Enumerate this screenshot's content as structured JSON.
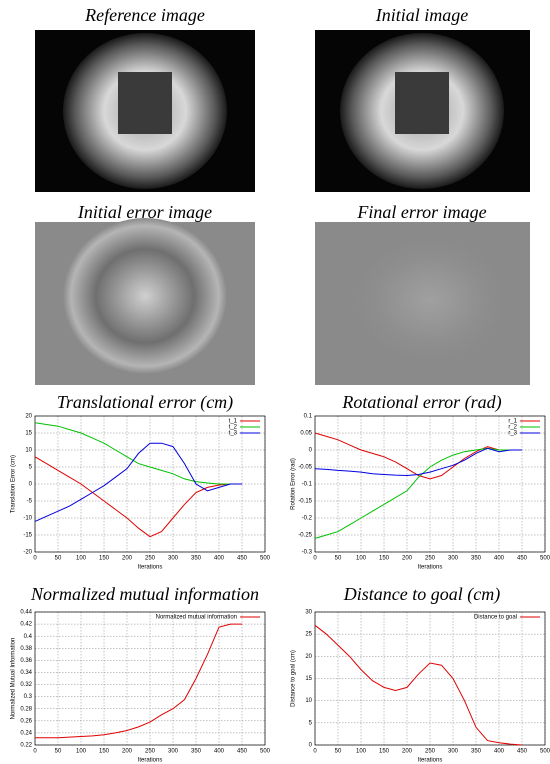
{
  "figures": [
    {
      "caption": "Reference image"
    },
    {
      "caption": "Initial image"
    },
    {
      "caption": "Initial error image"
    },
    {
      "caption": "Final error image"
    }
  ],
  "chart_data": [
    {
      "type": "line",
      "title": "Translational error (cm)",
      "xlabel": "Iterations",
      "ylabel": "Translation Error (cm)",
      "xlim": [
        0,
        500
      ],
      "xticks": [
        0,
        50,
        100,
        150,
        200,
        250,
        300,
        350,
        400,
        450,
        500
      ],
      "ylim": [
        -20,
        20
      ],
      "yticks": [
        -20,
        -15,
        -10,
        -5,
        0,
        5,
        10,
        15,
        20
      ],
      "grid": true,
      "legend": "top-right",
      "x": [
        0,
        25,
        50,
        75,
        100,
        125,
        150,
        175,
        200,
        225,
        250,
        275,
        300,
        325,
        350,
        375,
        400,
        425,
        450
      ],
      "series": [
        {
          "name": "t_1",
          "color": "#e00000",
          "values": [
            8,
            6,
            4,
            2,
            0,
            -2.5,
            -5,
            -7.5,
            -10,
            -13,
            -15.5,
            -14,
            -10,
            -6,
            -2.5,
            -1,
            -0.3,
            0,
            0
          ]
        },
        {
          "name": "t_2",
          "color": "#00c000",
          "values": [
            18,
            17.5,
            17,
            16,
            15,
            13.5,
            12,
            10,
            8,
            6,
            5,
            4,
            3,
            1.5,
            0.7,
            0.3,
            0,
            0,
            0
          ]
        },
        {
          "name": "t_3",
          "color": "#0000e0",
          "values": [
            -11,
            -9.5,
            -8,
            -6.5,
            -4.5,
            -2.5,
            -0.5,
            2,
            4.5,
            9,
            12,
            12,
            11,
            6,
            0,
            -2,
            -1,
            0,
            0
          ]
        }
      ]
    },
    {
      "type": "line",
      "title": "Rotational error (rad)",
      "xlabel": "Iterations",
      "ylabel": "Rotation Error (rad)",
      "xlim": [
        0,
        500
      ],
      "xticks": [
        0,
        50,
        100,
        150,
        200,
        250,
        300,
        350,
        400,
        450,
        500
      ],
      "ylim": [
        -0.3,
        0.1
      ],
      "yticks": [
        -0.3,
        -0.25,
        -0.2,
        -0.15,
        -0.1,
        -0.05,
        0,
        0.05,
        0.1
      ],
      "grid": true,
      "legend": "top-right",
      "x": [
        0,
        25,
        50,
        75,
        100,
        125,
        150,
        175,
        200,
        225,
        250,
        275,
        300,
        325,
        350,
        375,
        400,
        425,
        450
      ],
      "series": [
        {
          "name": "r_1",
          "color": "#e00000",
          "values": [
            0.05,
            0.04,
            0.03,
            0.015,
            0,
            -0.01,
            -0.02,
            -0.035,
            -0.055,
            -0.075,
            -0.085,
            -0.075,
            -0.05,
            -0.025,
            -0.005,
            0.01,
            0,
            0,
            0
          ]
        },
        {
          "name": "r_2",
          "color": "#00c000",
          "values": [
            -0.26,
            -0.25,
            -0.24,
            -0.22,
            -0.2,
            -0.18,
            -0.16,
            -0.14,
            -0.12,
            -0.08,
            -0.05,
            -0.03,
            -0.015,
            -0.005,
            0,
            0.005,
            0,
            0,
            0
          ]
        },
        {
          "name": "r_3",
          "color": "#0000e0",
          "values": [
            -0.055,
            -0.057,
            -0.06,
            -0.062,
            -0.065,
            -0.07,
            -0.072,
            -0.074,
            -0.075,
            -0.072,
            -0.065,
            -0.055,
            -0.045,
            -0.03,
            -0.01,
            0.005,
            -0.005,
            0,
            0
          ]
        }
      ]
    },
    {
      "type": "line",
      "title": "Normalized mutual information",
      "xlabel": "Iterations",
      "ylabel": "Normalized Mutual Information",
      "xlim": [
        0,
        500
      ],
      "xticks": [
        0,
        50,
        100,
        150,
        200,
        250,
        300,
        350,
        400,
        450,
        500
      ],
      "ylim": [
        0.22,
        0.44
      ],
      "yticks": [
        0.22,
        0.24,
        0.26,
        0.28,
        0.3,
        0.32,
        0.34,
        0.36,
        0.38,
        0.4,
        0.42,
        0.44
      ],
      "grid": true,
      "legend": "top-right",
      "x": [
        0,
        25,
        50,
        75,
        100,
        125,
        150,
        175,
        200,
        225,
        250,
        275,
        300,
        325,
        350,
        375,
        400,
        425,
        450
      ],
      "series": [
        {
          "name": "Normalized mutual information",
          "color": "#e00000",
          "values": [
            0.232,
            0.232,
            0.232,
            0.233,
            0.234,
            0.235,
            0.237,
            0.24,
            0.244,
            0.25,
            0.258,
            0.27,
            0.28,
            0.295,
            0.33,
            0.37,
            0.415,
            0.42,
            0.42
          ]
        }
      ]
    },
    {
      "type": "line",
      "title": "Distance to goal (cm)",
      "xlabel": "Iterations",
      "ylabel": "Distance to goal (cm)",
      "xlim": [
        0,
        500
      ],
      "xticks": [
        0,
        50,
        100,
        150,
        200,
        250,
        300,
        350,
        400,
        450,
        500
      ],
      "ylim": [
        0,
        30
      ],
      "yticks": [
        0,
        5,
        10,
        15,
        20,
        25,
        30
      ],
      "grid": true,
      "legend": "top-right",
      "x": [
        0,
        25,
        50,
        75,
        100,
        125,
        150,
        175,
        200,
        225,
        250,
        275,
        300,
        325,
        350,
        375,
        400,
        425,
        450
      ],
      "series": [
        {
          "name": "Distance to goal",
          "color": "#e00000",
          "values": [
            27,
            25,
            22.5,
            20,
            17,
            14.5,
            13,
            12.3,
            13,
            16,
            18.5,
            18,
            15,
            10,
            4,
            1,
            0.5,
            0.2,
            0
          ]
        }
      ]
    }
  ]
}
